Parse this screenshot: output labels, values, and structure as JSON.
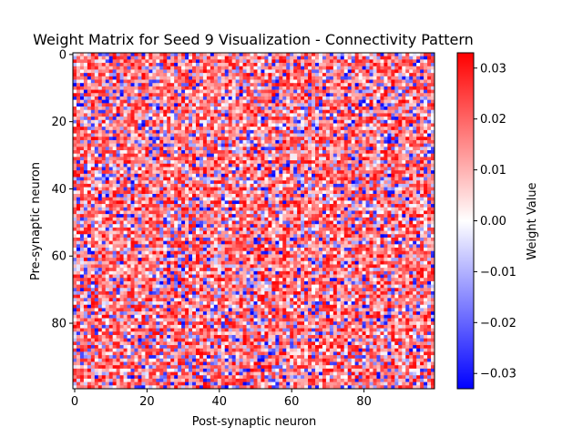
{
  "chart_data": {
    "type": "heatmap",
    "title": "Weight Matrix for Seed 9 Visualization - Connectivity Pattern",
    "xlabel": "Post-synaptic neuron",
    "ylabel": "Pre-synaptic neuron",
    "colorbar_label": "Weight Value",
    "colormap": "bwr",
    "rows": 100,
    "cols": 100,
    "xlim": [
      0,
      99
    ],
    "ylim": [
      0,
      99
    ],
    "vmin": -0.033,
    "vmax": 0.033,
    "x_ticks": [
      "0",
      "20",
      "40",
      "60",
      "80"
    ],
    "y_ticks": [
      "0",
      "20",
      "40",
      "60",
      "80"
    ],
    "colorbar_ticks": [
      "0.03",
      "0.02",
      "0.01",
      "0.00",
      "−0.01",
      "−0.02",
      "−0.03"
    ],
    "value_distribution_note": "random weights, predominantly positive (mostly red), scattered negative (blue) cells"
  },
  "colors": {
    "negative": "#0000ff",
    "zero": "#ffffff",
    "positive": "#ff0000"
  }
}
